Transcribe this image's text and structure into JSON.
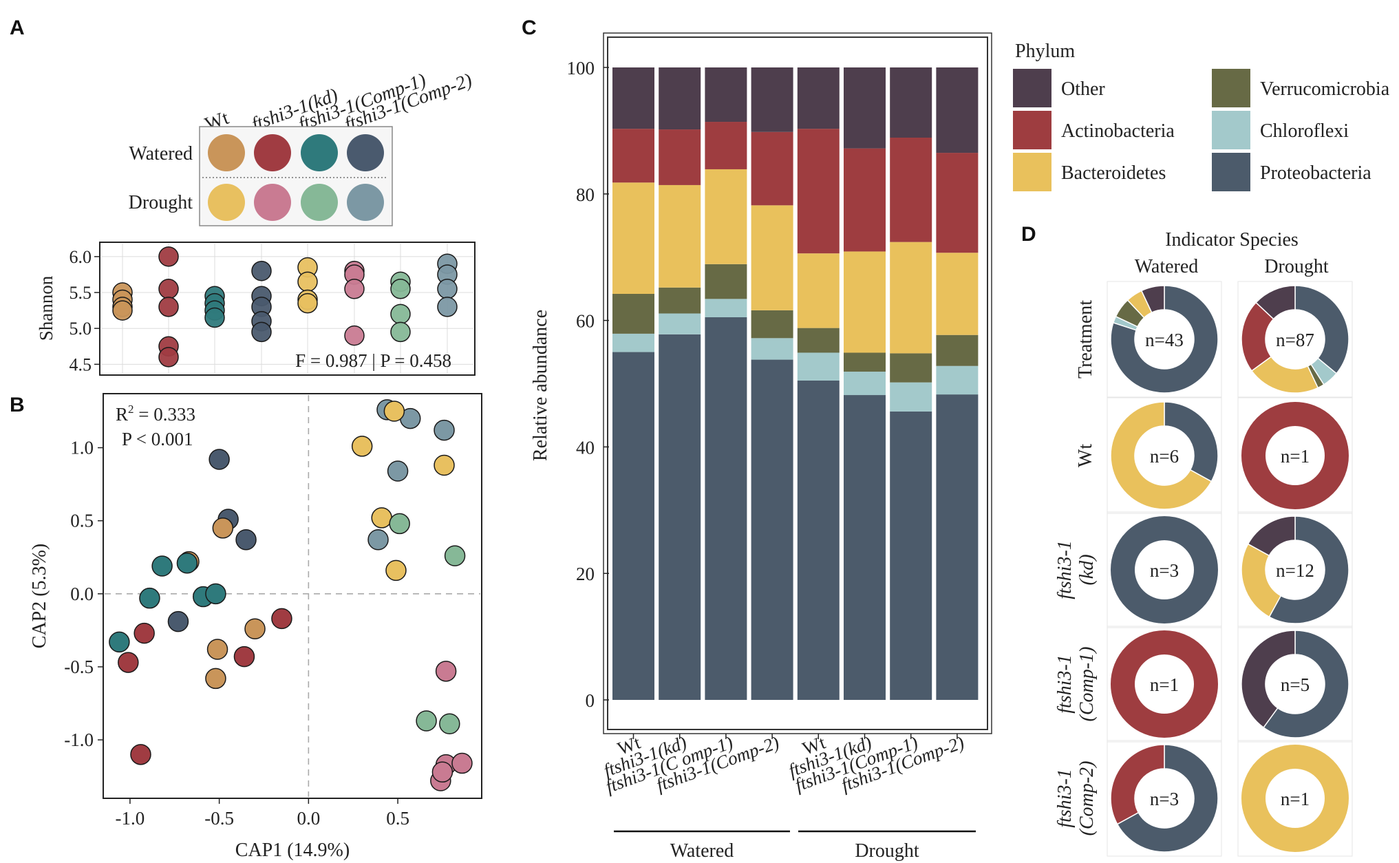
{
  "panels": {
    "a": "A",
    "b": "B",
    "c": "C",
    "d": "D"
  },
  "colors": {
    "wt_w": "#c9955a",
    "kd_w": "#a03c42",
    "c1_w": "#2f7a7c",
    "c2_w": "#4a5a6e",
    "wt_d": "#e8c060",
    "kd_d": "#c97b92",
    "c1_d": "#86b897",
    "c2_d": "#7c98a4",
    "other": "#4e3e4d",
    "actino": "#9e3d40",
    "bactero": "#e9c15c",
    "verruco": "#676a45",
    "chloro": "#a3c9cb",
    "proteo": "#4c5b6b"
  },
  "a": {
    "genotypes": [
      "Wt",
      "ftshi3-1(kd)",
      "ftshi3-1(Comp-1)",
      "ftshi3-1(Comp-2)"
    ],
    "treatments": [
      "Watered",
      "Drought"
    ],
    "chart_data": {
      "type": "scatter",
      "ylabel": "Shannon",
      "yticks": [
        "6.0",
        "5.5",
        "5.0",
        "4.5"
      ],
      "ylim": [
        4.35,
        6.2
      ],
      "groups": [
        {
          "id": "wt_w",
          "values": [
            5.5,
            5.4,
            5.3,
            5.25
          ]
        },
        {
          "id": "kd_w",
          "values": [
            6.0,
            5.55,
            5.3,
            4.75,
            4.6
          ]
        },
        {
          "id": "c1_w",
          "values": [
            5.45,
            5.35,
            5.25,
            5.15
          ]
        },
        {
          "id": "c2_w",
          "values": [
            5.8,
            5.45,
            5.3,
            5.1,
            4.95
          ]
        },
        {
          "id": "wt_d",
          "values": [
            5.85,
            5.65,
            5.4,
            5.35
          ]
        },
        {
          "id": "kd_d",
          "values": [
            5.8,
            5.75,
            5.55,
            4.9
          ]
        },
        {
          "id": "c1_d",
          "values": [
            5.65,
            5.55,
            5.2,
            4.95
          ]
        },
        {
          "id": "c2_d",
          "values": [
            5.9,
            5.75,
            5.55,
            5.3
          ]
        }
      ],
      "stat": "F = 0.987 |  P = 0.458"
    }
  },
  "b": {
    "chart_data": {
      "type": "scatter",
      "xlabel": "CAP1 (14.9%)",
      "ylabel": "CAP2 (5.3%)",
      "xlim": [
        -1.15,
        0.97
      ],
      "ylim": [
        -1.4,
        1.37
      ],
      "xticks": [
        "-1.0",
        "-0.5",
        "0.0",
        "0.5"
      ],
      "yticks": [
        "1.0",
        "0.5",
        "0.0",
        "-0.5",
        "-1.0"
      ],
      "r2_base": "R",
      "r2_sup": "2",
      "r2_rest": " = 0.333",
      "pval": "P < 0.001",
      "points": [
        {
          "g": "c2_w",
          "x": -0.5,
          "y": 0.92
        },
        {
          "g": "c2_w",
          "x": -0.45,
          "y": 0.51
        },
        {
          "g": "c2_w",
          "x": -0.35,
          "y": 0.37
        },
        {
          "g": "c2_w",
          "x": -0.73,
          "y": -0.19
        },
        {
          "g": "wt_w",
          "x": -0.48,
          "y": 0.45
        },
        {
          "g": "wt_w",
          "x": -0.67,
          "y": 0.22
        },
        {
          "g": "wt_w",
          "x": -0.3,
          "y": -0.24
        },
        {
          "g": "wt_w",
          "x": -0.51,
          "y": -0.38
        },
        {
          "g": "wt_w",
          "x": -0.52,
          "y": -0.58
        },
        {
          "g": "c1_w",
          "x": -0.82,
          "y": 0.19
        },
        {
          "g": "c1_w",
          "x": -0.68,
          "y": 0.21
        },
        {
          "g": "c1_w",
          "x": -0.89,
          "y": -0.03
        },
        {
          "g": "c1_w",
          "x": -0.59,
          "y": -0.02
        },
        {
          "g": "c1_w",
          "x": -0.52,
          "y": 0.0
        },
        {
          "g": "c1_w",
          "x": -1.06,
          "y": -0.33
        },
        {
          "g": "kd_w",
          "x": -0.15,
          "y": -0.17
        },
        {
          "g": "kd_w",
          "x": -0.92,
          "y": -0.27
        },
        {
          "g": "kd_w",
          "x": -1.01,
          "y": -0.47
        },
        {
          "g": "kd_w",
          "x": -0.36,
          "y": -0.43
        },
        {
          "g": "kd_w",
          "x": -0.94,
          "y": -1.1
        },
        {
          "g": "c2_d",
          "x": 0.44,
          "y": 1.26
        },
        {
          "g": "c2_d",
          "x": 0.57,
          "y": 1.2
        },
        {
          "g": "c2_d",
          "x": 0.76,
          "y": 1.12
        },
        {
          "g": "c2_d",
          "x": 0.5,
          "y": 0.84
        },
        {
          "g": "c2_d",
          "x": 0.39,
          "y": 0.37
        },
        {
          "g": "wt_d",
          "x": 0.48,
          "y": 1.25
        },
        {
          "g": "wt_d",
          "x": 0.3,
          "y": 1.01
        },
        {
          "g": "wt_d",
          "x": 0.76,
          "y": 0.88
        },
        {
          "g": "wt_d",
          "x": 0.41,
          "y": 0.52
        },
        {
          "g": "wt_d",
          "x": 0.49,
          "y": 0.16
        },
        {
          "g": "c1_d",
          "x": 0.51,
          "y": 0.48
        },
        {
          "g": "c1_d",
          "x": 0.82,
          "y": 0.26
        },
        {
          "g": "c1_d",
          "x": 0.66,
          "y": -0.87
        },
        {
          "g": "c1_d",
          "x": 0.79,
          "y": -0.89
        },
        {
          "g": "kd_d",
          "x": 0.77,
          "y": -0.53
        },
        {
          "g": "kd_d",
          "x": 0.77,
          "y": -1.17
        },
        {
          "g": "kd_d",
          "x": 0.86,
          "y": -1.16
        },
        {
          "g": "kd_d",
          "x": 0.74,
          "y": -1.28
        },
        {
          "g": "kd_d",
          "x": 0.75,
          "y": -1.22
        }
      ]
    }
  },
  "c": {
    "chart_data": {
      "type": "bar",
      "stacked": true,
      "ylabel": "Relative abundance",
      "ylim": [
        0,
        100
      ],
      "yticks": [
        "0",
        "20",
        "40",
        "60",
        "80",
        "100"
      ],
      "categories": [
        "Wt",
        "ftshi3-1(kd)",
        "ftshi3-1(C omp-1)",
        "ftshi3-1(Comp-2)",
        "Wt",
        "ftshi3-1(kd)",
        "ftshi3-1(Comp-1)",
        "ftshi3-1(Comp-2)"
      ],
      "group_labels": [
        "Watered",
        "Drought"
      ],
      "legend_title": "Phylum",
      "series": [
        {
          "key": "proteo",
          "name": "Proteobacteria",
          "values": [
            55,
            57.8,
            60.5,
            53.8,
            50.5,
            48.2,
            45.6,
            48.3
          ]
        },
        {
          "key": "chloro",
          "name": "Chloroflexi",
          "values": [
            2.9,
            3.3,
            2.9,
            3.4,
            4.4,
            3.7,
            4.6,
            4.5
          ]
        },
        {
          "key": "verruco",
          "name": "Verrucomicrobia",
          "values": [
            6.3,
            4.1,
            5.5,
            4.4,
            3.9,
            3.0,
            4.6,
            4.9
          ]
        },
        {
          "key": "bactero",
          "name": "Bacteroidetes",
          "values": [
            17.6,
            16.2,
            15.0,
            16.6,
            11.8,
            16.0,
            17.6,
            13.0
          ]
        },
        {
          "key": "actino",
          "name": "Actinobacteria",
          "values": [
            8.5,
            8.8,
            7.5,
            11.6,
            19.7,
            16.3,
            16.5,
            15.8
          ]
        },
        {
          "key": "other",
          "name": "Other",
          "values": [
            9.7,
            9.8,
            8.6,
            10.2,
            9.7,
            12.8,
            11.1,
            13.5
          ]
        }
      ],
      "legend_order": [
        "other",
        "actino",
        "bactero",
        "verruco",
        "chloro",
        "proteo"
      ]
    }
  },
  "d": {
    "title": "Indicator Species",
    "columns": [
      "Watered",
      "Drought"
    ],
    "row_labels": [
      "Treatment",
      "Wt",
      "ftshi3-1",
      "(kd)",
      "ftshi3-1",
      "(Comp-1)",
      "ftshi3-1",
      "(Comp-2)"
    ],
    "chart_data": {
      "type": "pie",
      "donuts": [
        {
          "row": 0,
          "col": 0,
          "label": "n=43",
          "slices": [
            {
              "k": "proteo",
              "v": 0.8
            },
            {
              "k": "chloro",
              "v": 0.02
            },
            {
              "k": "verruco",
              "v": 0.06
            },
            {
              "k": "bactero",
              "v": 0.05
            },
            {
              "k": "other",
              "v": 0.07
            }
          ]
        },
        {
          "row": 0,
          "col": 1,
          "label": "n=87",
          "slices": [
            {
              "k": "proteo",
              "v": 0.36
            },
            {
              "k": "chloro",
              "v": 0.05
            },
            {
              "k": "verruco",
              "v": 0.02
            },
            {
              "k": "bactero",
              "v": 0.22
            },
            {
              "k": "actino",
              "v": 0.22
            },
            {
              "k": "other",
              "v": 0.13
            }
          ]
        },
        {
          "row": 1,
          "col": 0,
          "label": "n=6",
          "slices": [
            {
              "k": "proteo",
              "v": 0.33
            },
            {
              "k": "bactero",
              "v": 0.67
            }
          ]
        },
        {
          "row": 1,
          "col": 1,
          "label": "n=1",
          "slices": [
            {
              "k": "actino",
              "v": 1.0
            }
          ]
        },
        {
          "row": 2,
          "col": 0,
          "label": "n=3",
          "slices": [
            {
              "k": "proteo",
              "v": 1.0
            }
          ]
        },
        {
          "row": 2,
          "col": 1,
          "label": "n=12",
          "slices": [
            {
              "k": "proteo",
              "v": 0.58
            },
            {
              "k": "bactero",
              "v": 0.25
            },
            {
              "k": "other",
              "v": 0.17
            }
          ]
        },
        {
          "row": 3,
          "col": 0,
          "label": "n=1",
          "slices": [
            {
              "k": "actino",
              "v": 1.0
            }
          ]
        },
        {
          "row": 3,
          "col": 1,
          "label": "n=5",
          "slices": [
            {
              "k": "proteo",
              "v": 0.6
            },
            {
              "k": "other",
              "v": 0.4
            }
          ]
        },
        {
          "row": 4,
          "col": 0,
          "label": "n=3",
          "slices": [
            {
              "k": "proteo",
              "v": 0.67
            },
            {
              "k": "actino",
              "v": 0.33
            }
          ]
        },
        {
          "row": 4,
          "col": 1,
          "label": "n=1",
          "slices": [
            {
              "k": "bactero",
              "v": 1.0
            }
          ]
        }
      ]
    }
  }
}
